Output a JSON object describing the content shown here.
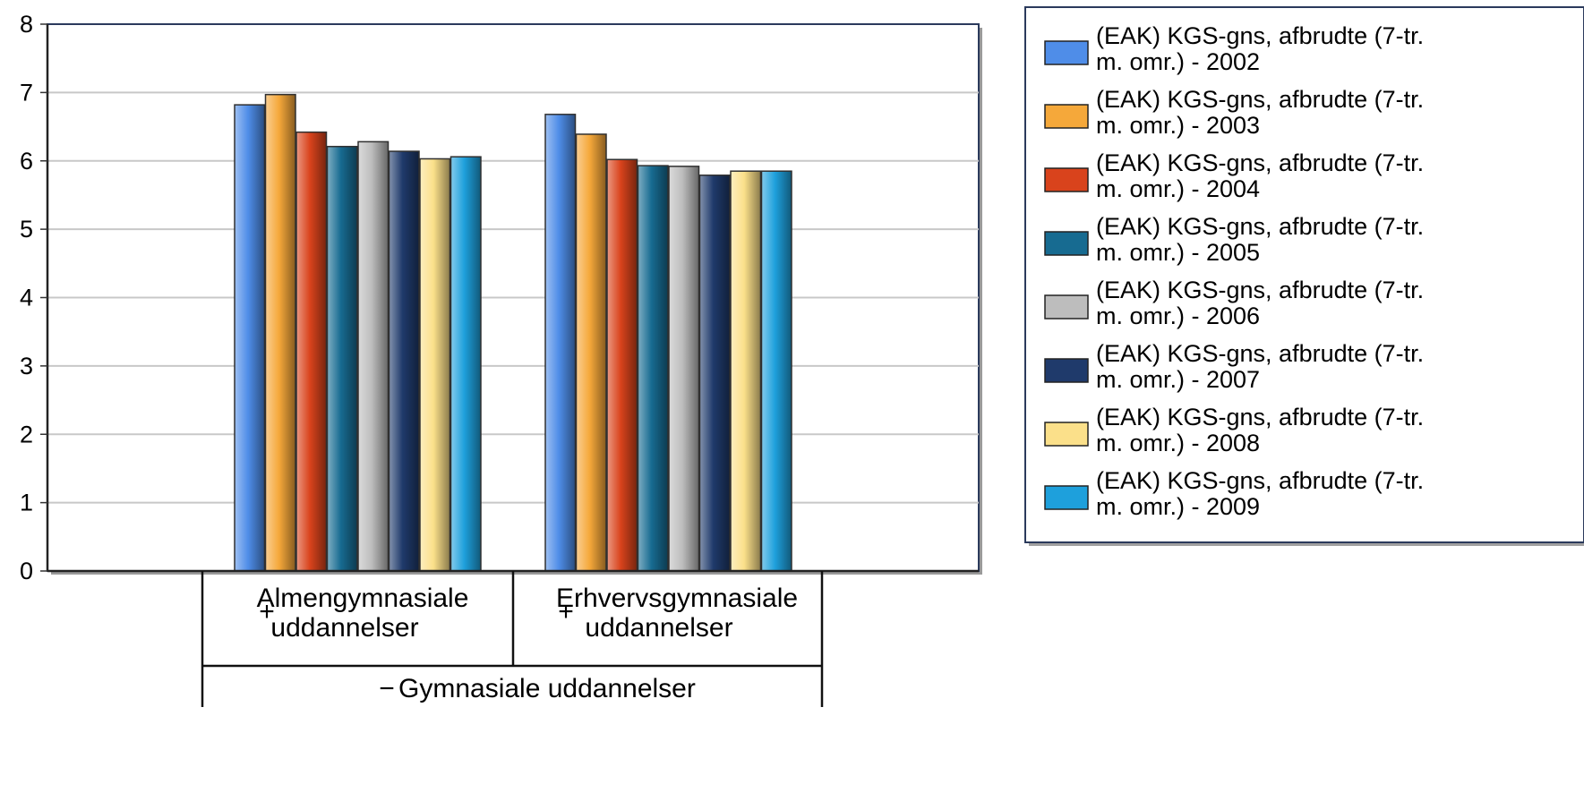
{
  "chart_data": {
    "type": "bar",
    "title": "",
    "xlabel": "",
    "ylabel": "",
    "ylim": [
      0,
      8
    ],
    "yticks": [
      "0",
      "1",
      "2",
      "3",
      "4",
      "5",
      "6",
      "7",
      "8"
    ],
    "grid": true,
    "legend_position": "right",
    "categories": [
      {
        "lines": [
          "Almengymnasiale",
          "uddannelser"
        ],
        "marker": "+"
      },
      {
        "lines": [
          "Erhvervsgymnasiale",
          "uddannelser"
        ],
        "marker": "+"
      }
    ],
    "group": {
      "label": "Gymnasiale uddannelser",
      "marker": "−"
    },
    "series": [
      {
        "legend_lines": [
          "(EAK) KGS-gns, afbrudte (7-tr.",
          "m. omr.) - 2002"
        ],
        "color": "#4f8de8",
        "values": [
          6.82,
          6.68
        ]
      },
      {
        "legend_lines": [
          "(EAK) KGS-gns, afbrudte (7-tr.",
          "m. omr.) - 2003"
        ],
        "color": "#f5a83a",
        "values": [
          6.97,
          6.39
        ]
      },
      {
        "legend_lines": [
          "(EAK) KGS-gns, afbrudte (7-tr.",
          "m. omr.) - 2004"
        ],
        "color": "#d9431c",
        "values": [
          6.42,
          6.02
        ]
      },
      {
        "legend_lines": [
          "(EAK) KGS-gns, afbrudte (7-tr.",
          "m. omr.) - 2005"
        ],
        "color": "#176b91",
        "values": [
          6.21,
          5.93
        ]
      },
      {
        "legend_lines": [
          "(EAK) KGS-gns, afbrudte (7-tr.",
          "m. omr.) - 2006"
        ],
        "color": "#bdbdbd",
        "values": [
          6.28,
          5.92
        ]
      },
      {
        "legend_lines": [
          "(EAK) KGS-gns, afbrudte (7-tr.",
          "m. omr.) - 2007"
        ],
        "color": "#1f3a6b",
        "values": [
          6.14,
          5.79
        ]
      },
      {
        "legend_lines": [
          "(EAK) KGS-gns, afbrudte (7-tr.",
          "m. omr.) - 2008"
        ],
        "color": "#fbe08a",
        "values": [
          6.03,
          5.85
        ]
      },
      {
        "legend_lines": [
          "(EAK) KGS-gns, afbrudte (7-tr.",
          "m. omr.) - 2009"
        ],
        "color": "#1ea0dc",
        "values": [
          6.06,
          5.85
        ]
      }
    ]
  }
}
